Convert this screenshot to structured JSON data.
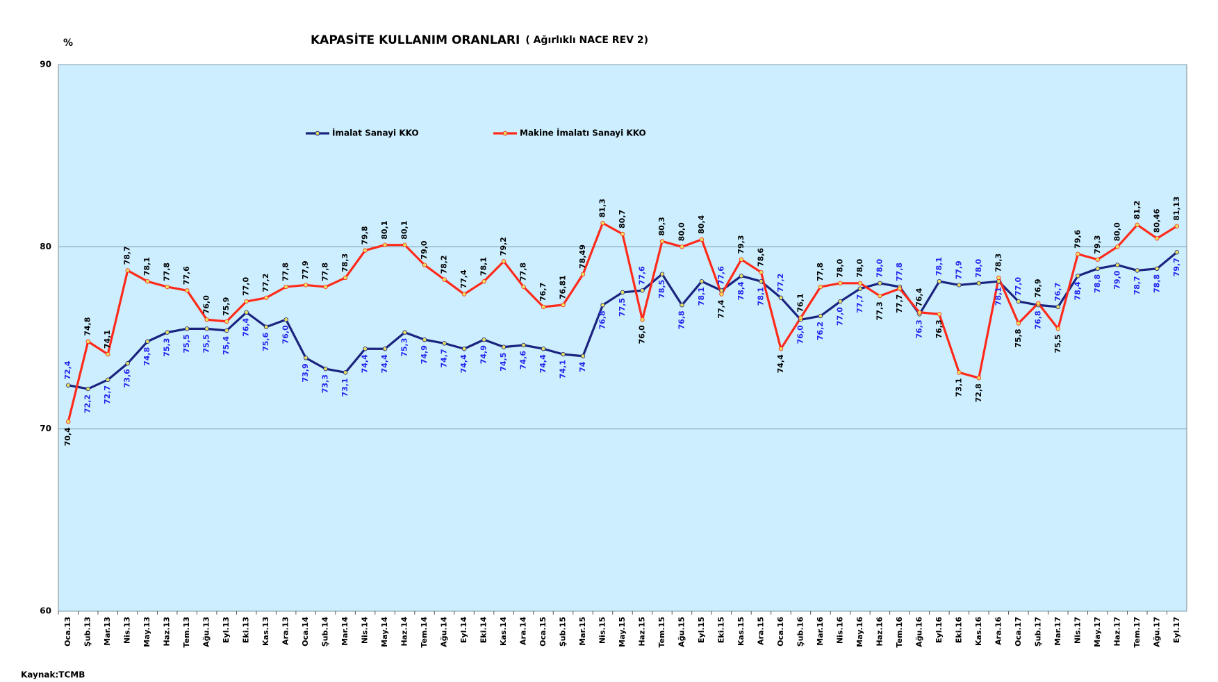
{
  "chart_data": {
    "type": "line",
    "title": "KAPASİTE KULLANIM ORANLARI",
    "subtitle": "( Ağırlıklı NACE REV 2)",
    "y_label": "%",
    "source": "Kaynak:TCMB",
    "categories": [
      "Oca.13",
      "Şub.13",
      "Mar.13",
      "Nis.13",
      "May.13",
      "Haz.13",
      "Tem.13",
      "Ağu.13",
      "Eyl.13",
      "Eki.13",
      "Kas.13",
      "Ara.13",
      "Oca.14",
      "Şub.14",
      "Mar.14",
      "Nis.14",
      "May.14",
      "Haz.14",
      "Tem.14",
      "Ağu.14",
      "Eyl.14",
      "Eki.14",
      "Kas.14",
      "Ara.14",
      "Oca.15",
      "Şub.15",
      "Mar.15",
      "Nis.15",
      "May.15",
      "Haz.15",
      "Tem.15",
      "Ağu.15",
      "Eyl.15",
      "Eki.15",
      "Kas.15",
      "Ara.15",
      "Oca.16",
      "Şub.16",
      "Mar.16",
      "Nis.16",
      "May.16",
      "Haz.16",
      "Tem.16",
      "Ağu.16",
      "Eyl.16",
      "Eki.16",
      "Kas.16",
      "Ara.16",
      "Oca.17",
      "Şub.17",
      "Mar.17",
      "Nis.17",
      "May.17",
      "Haz.17",
      "Tem.17",
      "Ağu.17",
      "Eyl.17"
    ],
    "series": [
      {
        "name": "İmalat Sanayi KKO",
        "color": "#1a237e",
        "label_color": "#2222ee",
        "values": [
          72.4,
          72.2,
          72.7,
          73.6,
          74.8,
          75.3,
          75.5,
          75.5,
          75.4,
          76.4,
          75.6,
          76.0,
          73.9,
          73.3,
          73.1,
          74.4,
          74.4,
          75.3,
          74.9,
          74.7,
          74.4,
          74.9,
          74.5,
          74.6,
          74.4,
          74.1,
          74,
          76.8,
          77.5,
          77.6,
          78.5,
          76.8,
          78.1,
          77.6,
          78.4,
          78.1,
          77.2,
          76.0,
          76.2,
          77.0,
          77.7,
          78.0,
          77.8,
          76.3,
          78.1,
          77.9,
          78.0,
          78.1,
          77.0,
          76.8,
          76.7,
          78.4,
          78.8,
          79.0,
          78.7,
          78.8,
          79.7
        ],
        "value_labels": [
          "72,4",
          "72,2",
          "72,7",
          "73,6",
          "74,8",
          "75,3",
          "75,5",
          "75,5",
          "75,4",
          "76,4",
          "75,6",
          "76,0",
          "73,9",
          "73,3",
          "73,1",
          "74,4",
          "74,4",
          "75,3",
          "74,9",
          "74,7",
          "74,4",
          "74,9",
          "74,5",
          "74,6",
          "74,4",
          "74,1",
          "74",
          "76,8",
          "77,5",
          "77,6",
          "78,5",
          "76,8",
          "78,1",
          "77,6",
          "78,4",
          "78,1",
          "77,2",
          "76,0",
          "76,2",
          "77,0",
          "77,7",
          "78,0",
          "77,8",
          "76,3",
          "78,1",
          "77,9",
          "78,0",
          "78,1",
          "77,0",
          "76,8",
          "76,7",
          "78,4",
          "78,8",
          "79,0",
          "78,7",
          "78,8",
          "79,7"
        ]
      },
      {
        "name": "Makine İmalatı Sanayi KKO",
        "color": "#ff2a1a",
        "label_color": "#000000",
        "values": [
          70.4,
          74.8,
          74.1,
          78.7,
          78.1,
          77.8,
          77.6,
          76.0,
          75.9,
          77.0,
          77.2,
          77.8,
          77.9,
          77.8,
          78.3,
          79.8,
          80.1,
          80.1,
          79.0,
          78.2,
          77.4,
          78.1,
          79.2,
          77.8,
          76.7,
          76.81,
          78.49,
          81.3,
          80.7,
          76.0,
          80.3,
          80.0,
          80.4,
          77.4,
          79.3,
          78.6,
          74.4,
          76.1,
          77.8,
          78.0,
          78.0,
          77.3,
          77.7,
          76.4,
          76.3,
          73.1,
          72.8,
          78.3,
          75.8,
          76.9,
          75.5,
          79.6,
          79.3,
          80.0,
          81.2,
          80.46,
          81.13
        ],
        "value_labels": [
          "70,4",
          "74,8",
          "74,1",
          "78,7",
          "78,1",
          "77,8",
          "77,6",
          "76,0",
          "75,9",
          "77,0",
          "77,2",
          "77,8",
          "77,9",
          "77,8",
          "78,3",
          "79,8",
          "80,1",
          "80,1",
          "79,0",
          "78,2",
          "77,4",
          "78,1",
          "79,2",
          "77,8",
          "76,7",
          "76,81",
          "78,49",
          "81,3",
          "80,7",
          "76,0",
          "80,3",
          "80,0",
          "80,4",
          "77,4",
          "79,3",
          "78,6",
          "74,4",
          "76,1",
          "77,8",
          "78,0",
          "78,0",
          "77,3",
          "77,7",
          "76,4",
          "76,3",
          "73,1",
          "72,8",
          "78,3",
          "75,8",
          "76,9",
          "75,5",
          "79,6",
          "79,3",
          "80,0",
          "81,2",
          "80,46",
          "81,13"
        ]
      }
    ],
    "ylim": [
      60,
      90
    ],
    "yticks": [
      60,
      70,
      80,
      90
    ],
    "grid": true,
    "plot_background": "#cceeff",
    "marker_color": "#e8e060"
  }
}
